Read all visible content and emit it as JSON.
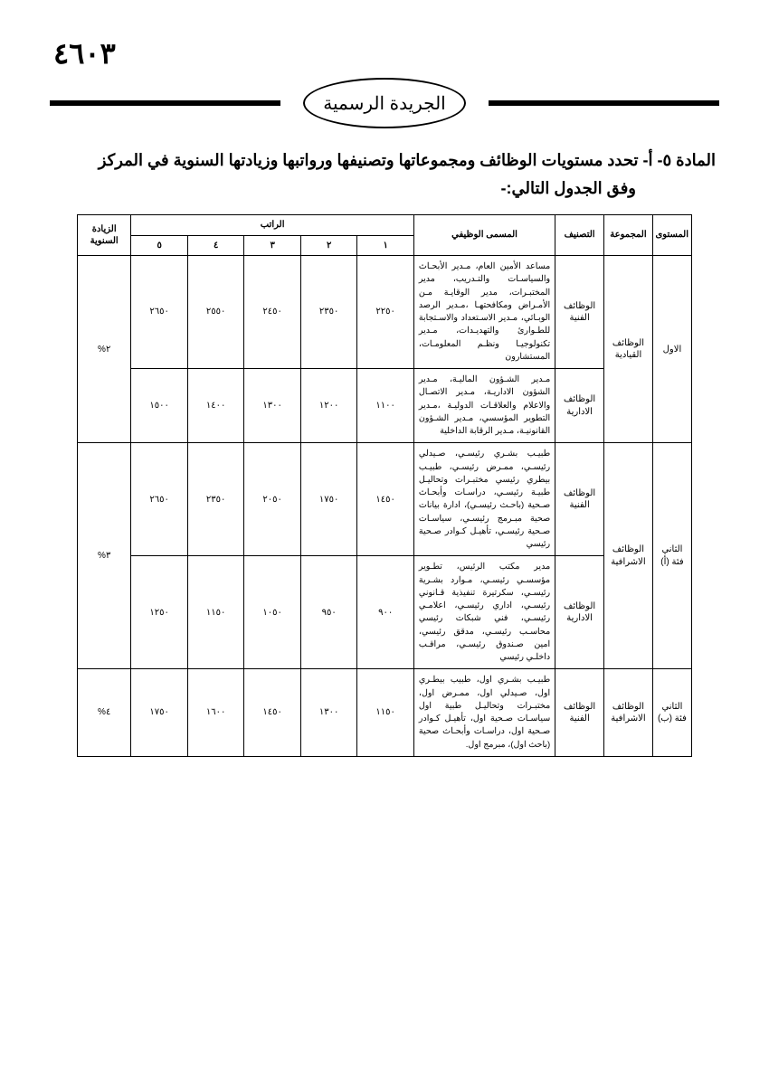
{
  "page_number": "٤٦٠٣",
  "header_badge": "الجريدة الرسمية",
  "article_line1": "المادة ٥- أ-  تحدد مستويات الوظائف ومجموعاتها وتصنيفها ورواتبها وزيادتها السنوية في المركز",
  "article_line2": "وفق الجدول التالي:-",
  "table": {
    "headers": {
      "level": "المستوى",
      "group": "المجموعة",
      "classification": "التصنيف",
      "job_title": "المسمى الوظيفي",
      "salary_group": "الراتب",
      "salary_cols": [
        "١",
        "٢",
        "٣",
        "٤",
        "٥"
      ],
      "annual_increase": "الزيادة السنوية"
    },
    "rows": [
      {
        "level": "الاول",
        "group": "الوظائف القيادية",
        "increase": "٢%",
        "subrows": [
          {
            "classification": "الوظائف الفنية",
            "job_title": "مساعد الأمين العام، مـدير الأبحـاث والسياسـات والتـدريب، مدير المختبـرات، مدير الوقايـة مـن الأمـراض ومكافحتهـا ،مـدير الرصد الوبـائي، مـدير الاسـتعداد والاسـتجابة للطـوارئ والتهديـدات، مـدير تكنولوجيـا ونظـم المعلومـات، المستشارون",
            "salaries": [
              "٢٢٥٠",
              "٢٣٥٠",
              "٢٤٥٠",
              "٢٥٥٠",
              "٢٦٥٠"
            ]
          },
          {
            "classification": "الوظائف الادارية",
            "job_title": "مـدير الشـؤون الماليـة، مـدير الشؤون الاداريـة، مـدير الاتصـال والاعلام والعلاقـات الدوليـة ،مـدير التطوير المؤسسي، مـدير الشـؤون القانونيـة، مـدير الرقابة الداخلية",
            "salaries": [
              "١١٠٠",
              "١٢٠٠",
              "١٣٠٠",
              "١٤٠٠",
              "١٥٠٠"
            ]
          }
        ]
      },
      {
        "level": "الثاني فئة (أ)",
        "group": "الوظائف الاشرافية",
        "increase": "٣%",
        "subrows": [
          {
            "classification": "الوظائف الفنية",
            "job_title": "طبيـب بشـري رئيسـي، صـيدلي رئيسـي، ممـرض رئيسـي، طبيـب بيطري رئيسي مختبـرات وتحاليـل طبيـة رئيسـي، دراسـات وأبحـاث صـحية (باحـث رئيسـي)، ادارة بيانات صحية مبـرمج رئيسـي، سياسـات صـحية رئيسـي، تأهيـل كـوادر صـحية رئيسي",
            "salaries": [
              "١٤٥٠",
              "١٧٥٠",
              "٢٠٥٠",
              "٢٣٥٠",
              "٢٦٥٠"
            ]
          },
          {
            "classification": "الوظائف الادارية",
            "job_title": "مدير مكتب الرئيس، تطـوير مؤسسـي رئيسـي، مـوارد بشـرية رئيسـي، سكرتيرة تنفيذية قـانوني رئيسـي، اداري رئيسـي، اعلامـي رئيسـي، فني شبكات رئيسي محاسـب رئيسـي، مدقق رئيسي، امين صـندوق رئيسـي، مراقـب داخلـي رئيسي",
            "salaries": [
              "٩٠٠",
              "٩٥٠",
              "١٠٥٠",
              "١١٥٠",
              "١٢٥٠"
            ]
          }
        ]
      },
      {
        "level": "الثاني فئة (ب)",
        "group": "الوظائف الاشرافية",
        "increase": "٤%",
        "subrows": [
          {
            "classification": "الوظائف الفنية",
            "job_title": "طبيـب بشـري اول، طبيب بيطـري اول، صـيدلي اول، ممـرض اول، مختبـرات وتحاليـل طبية اول سياسـات صـحية اول، تأهيـل كـوادر صـحية اول، دراسـات وأبحـاث صحية (باحث اول)، مبرمج اول.",
            "salaries": [
              "١١٥٠",
              "١٣٠٠",
              "١٤٥٠",
              "١٦٠٠",
              "١٧٥٠"
            ]
          }
        ]
      }
    ]
  }
}
